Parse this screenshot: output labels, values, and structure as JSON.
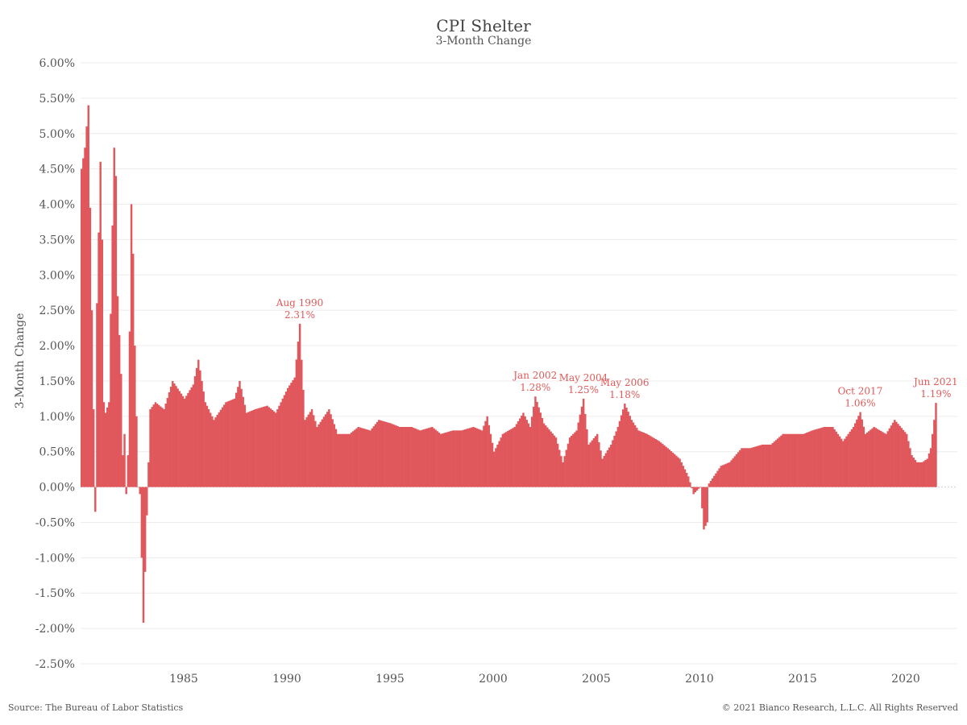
{
  "title": "CPI Shelter",
  "subtitle": "3-Month Change",
  "ylabel": "3-Month Change",
  "source": "Source: The Bureau of Labor Statistics",
  "copyright": "© 2021 Bianco Research, L.L.C. All Rights Reserved",
  "colors": {
    "bar": "#e0575c",
    "annotation": "#e05a5a",
    "grid": "#ececec"
  },
  "chart_data": {
    "type": "bar",
    "title": "CPI Shelter",
    "subtitle": "3-Month Change",
    "ylabel": "3-Month Change",
    "xlabel": "",
    "ylim": [
      -0.025,
      0.06
    ],
    "xlim": [
      1980.0,
      2022.5
    ],
    "y_ticks": [
      0.06,
      0.055,
      0.05,
      0.045,
      0.04,
      0.035,
      0.03,
      0.025,
      0.02,
      0.015,
      0.01,
      0.005,
      0.0,
      -0.005,
      -0.01,
      -0.015,
      -0.02,
      -0.025
    ],
    "y_tick_labels": [
      "6.00%",
      "5.50%",
      "5.00%",
      "4.50%",
      "4.00%",
      "3.50%",
      "3.00%",
      "2.50%",
      "2.00%",
      "1.50%",
      "1.00%",
      "0.50%",
      "0.00%",
      "-0.50%",
      "-1.00%",
      "-1.50%",
      "-2.00%",
      "-2.50%"
    ],
    "x_ticks": [
      1985,
      1990,
      1995,
      2000,
      2005,
      2010,
      2015,
      2020
    ],
    "x_tick_labels": [
      "1985",
      "1990",
      "1995",
      "2000",
      "2005",
      "2010",
      "2015",
      "2020"
    ],
    "grid": true,
    "start": "1980-01",
    "end": "2021-06",
    "frequency": "monthly",
    "anchors": [
      [
        "1980-01",
        0.045
      ],
      [
        "1980-03",
        0.048
      ],
      [
        "1980-05",
        0.054
      ],
      [
        "1980-07",
        0.025
      ],
      [
        "1980-08",
        0.011
      ],
      [
        "1980-09",
        -0.0035
      ],
      [
        "1980-10",
        0.026
      ],
      [
        "1980-12",
        0.046
      ],
      [
        "1981-01",
        0.035
      ],
      [
        "1981-02",
        0.012
      ],
      [
        "1981-03",
        0.0105
      ],
      [
        "1981-05",
        0.012
      ],
      [
        "1981-07",
        0.037
      ],
      [
        "1981-08",
        0.048
      ],
      [
        "1981-09",
        0.044
      ],
      [
        "1981-10",
        0.027
      ],
      [
        "1981-12",
        0.016
      ],
      [
        "1982-01",
        0.0045
      ],
      [
        "1982-02",
        0.0075
      ],
      [
        "1982-03",
        -0.001
      ],
      [
        "1982-04",
        0.0045
      ],
      [
        "1982-05",
        0.022
      ],
      [
        "1982-06",
        0.04
      ],
      [
        "1982-07",
        0.033
      ],
      [
        "1982-08",
        0.02
      ],
      [
        "1982-10",
        0.0
      ],
      [
        "1982-11",
        -0.001
      ],
      [
        "1982-12",
        -0.01
      ],
      [
        "1983-01",
        -0.0192
      ],
      [
        "1983-02",
        -0.012
      ],
      [
        "1983-03",
        -0.004
      ],
      [
        "1983-05",
        0.011
      ],
      [
        "1983-08",
        0.012
      ],
      [
        "1984-01",
        0.011
      ],
      [
        "1984-06",
        0.015
      ],
      [
        "1985-01",
        0.0125
      ],
      [
        "1985-06",
        0.0145
      ],
      [
        "1985-09",
        0.018
      ],
      [
        "1986-01",
        0.012
      ],
      [
        "1986-06",
        0.0095
      ],
      [
        "1987-01",
        0.012
      ],
      [
        "1987-06",
        0.0125
      ],
      [
        "1987-09",
        0.015
      ],
      [
        "1988-01",
        0.0105
      ],
      [
        "1988-06",
        0.011
      ],
      [
        "1989-01",
        0.0115
      ],
      [
        "1989-06",
        0.0105
      ],
      [
        "1989-10",
        0.0125
      ],
      [
        "1990-01",
        0.014
      ],
      [
        "1990-05",
        0.0155
      ],
      [
        "1990-08",
        0.0231
      ],
      [
        "1990-09",
        0.018
      ],
      [
        "1990-11",
        0.0095
      ],
      [
        "1991-03",
        0.011
      ],
      [
        "1991-06",
        0.0085
      ],
      [
        "1992-01",
        0.011
      ],
      [
        "1992-06",
        0.0075
      ],
      [
        "1993-01",
        0.0075
      ],
      [
        "1993-06",
        0.0085
      ],
      [
        "1994-01",
        0.008
      ],
      [
        "1994-06",
        0.0095
      ],
      [
        "1995-01",
        0.009
      ],
      [
        "1995-06",
        0.0085
      ],
      [
        "1996-01",
        0.0085
      ],
      [
        "1996-06",
        0.008
      ],
      [
        "1997-01",
        0.0085
      ],
      [
        "1997-06",
        0.0075
      ],
      [
        "1998-01",
        0.008
      ],
      [
        "1998-06",
        0.008
      ],
      [
        "1999-01",
        0.0085
      ],
      [
        "1999-06",
        0.008
      ],
      [
        "1999-09",
        0.01
      ],
      [
        "2000-01",
        0.005
      ],
      [
        "2000-06",
        0.0075
      ],
      [
        "2001-01",
        0.0085
      ],
      [
        "2001-06",
        0.0105
      ],
      [
        "2001-10",
        0.0085
      ],
      [
        "2002-01",
        0.0128
      ],
      [
        "2002-06",
        0.009
      ],
      [
        "2003-01",
        0.007
      ],
      [
        "2003-05",
        0.0035
      ],
      [
        "2003-09",
        0.007
      ],
      [
        "2004-01",
        0.008
      ],
      [
        "2004-05",
        0.0125
      ],
      [
        "2004-08",
        0.006
      ],
      [
        "2005-01",
        0.0075
      ],
      [
        "2005-04",
        0.004
      ],
      [
        "2005-09",
        0.006
      ],
      [
        "2006-01",
        0.0085
      ],
      [
        "2006-05",
        0.0118
      ],
      [
        "2006-09",
        0.0095
      ],
      [
        "2007-01",
        0.008
      ],
      [
        "2007-06",
        0.0075
      ],
      [
        "2008-01",
        0.0065
      ],
      [
        "2008-06",
        0.0055
      ],
      [
        "2009-01",
        0.004
      ],
      [
        "2009-06",
        0.0015
      ],
      [
        "2009-09",
        -0.001
      ],
      [
        "2010-01",
        0.0
      ],
      [
        "2010-03",
        -0.006
      ],
      [
        "2010-05",
        -0.005
      ],
      [
        "2010-06",
        0.0005
      ],
      [
        "2011-01",
        0.003
      ],
      [
        "2011-06",
        0.0035
      ],
      [
        "2012-01",
        0.0055
      ],
      [
        "2012-06",
        0.0055
      ],
      [
        "2013-01",
        0.006
      ],
      [
        "2013-06",
        0.006
      ],
      [
        "2014-01",
        0.0075
      ],
      [
        "2014-06",
        0.0075
      ],
      [
        "2015-01",
        0.0075
      ],
      [
        "2015-06",
        0.008
      ],
      [
        "2016-01",
        0.0085
      ],
      [
        "2016-06",
        0.0085
      ],
      [
        "2016-12",
        0.0065
      ],
      [
        "2017-06",
        0.0085
      ],
      [
        "2017-10",
        0.0106
      ],
      [
        "2018-01",
        0.0075
      ],
      [
        "2018-06",
        0.0085
      ],
      [
        "2019-01",
        0.0075
      ],
      [
        "2019-06",
        0.0095
      ],
      [
        "2020-01",
        0.0075
      ],
      [
        "2020-04",
        0.0045
      ],
      [
        "2020-07",
        0.0035
      ],
      [
        "2020-10",
        0.0035
      ],
      [
        "2021-01",
        0.004
      ],
      [
        "2021-03",
        0.0055
      ],
      [
        "2021-05",
        0.0095
      ],
      [
        "2021-06",
        0.0119
      ]
    ],
    "annotations": [
      {
        "label": "Aug 1990",
        "value_label": "2.31%",
        "date": "1990-08",
        "value": 0.0231
      },
      {
        "label": "Jan 2002",
        "value_label": "1.28%",
        "date": "2002-01",
        "value": 0.0128
      },
      {
        "label": "May 2004",
        "value_label": "1.25%",
        "date": "2004-05",
        "value": 0.0125
      },
      {
        "label": "May 2006",
        "value_label": "1.18%",
        "date": "2006-05",
        "value": 0.0118
      },
      {
        "label": "Oct 2017",
        "value_label": "1.06%",
        "date": "2017-10",
        "value": 0.0106
      },
      {
        "label": "Jun 2021",
        "value_label": "1.19%",
        "date": "2021-06",
        "value": 0.0119
      }
    ]
  }
}
